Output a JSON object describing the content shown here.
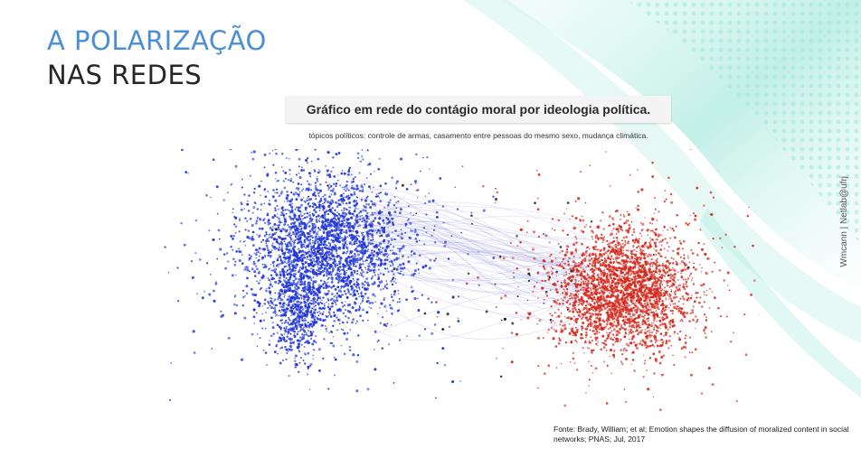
{
  "slide": {
    "title_line1": "A POLARIZAÇÃO",
    "title_line2": "NAS REDES",
    "chart_title": "Gráfico em rede do contágio moral por ideologia política.",
    "chart_subtitle": "tópicos políticos: controle de armas, casamento entre pessoas do mesmo sexo, mudança climática.",
    "watermark": "Wmcann | Netlab@ufrj",
    "source": "Fonte: Brady, William; et al; Emotion shapes the diffusion of moralized content in social networks; PNAS;  Jul, 2017"
  },
  "colors": {
    "title_accent": "#4a8fd6",
    "liberal_cluster": "#1f35d9",
    "conservative_cluster": "#d42a1e",
    "bridge_nodes": "#111111",
    "decor_teal": "#7fe0cf"
  },
  "network": {
    "clusters": [
      {
        "id": "blue",
        "color_key": "liberal_cluster"
      },
      {
        "id": "red",
        "color_key": "conservative_cluster"
      }
    ]
  }
}
